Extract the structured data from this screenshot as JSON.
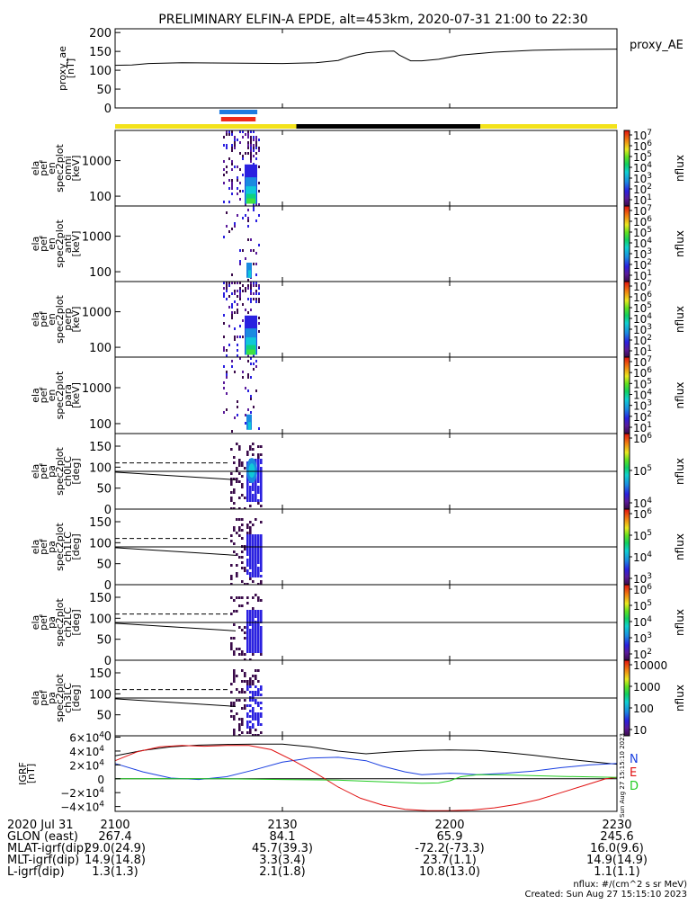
{
  "title": "PRELIMINARY ELFIN-A EPDE, alt=453km, 2020-07-31 21:00 to 22:30",
  "time_axis": {
    "start_min": 0,
    "end_min": 90,
    "ticks_min": [
      0,
      30,
      60,
      90
    ]
  },
  "colors": {
    "blue_bar": "#1e7be0",
    "red_bar": "#ee2a1a",
    "yellow_bar": "#f3e21b",
    "black_bar": "#000000",
    "n_color": "#1a3fe0",
    "e_color": "#e01010",
    "d_color": "#22cc22",
    "total_color": "#000000"
  },
  "bars": {
    "blue": {
      "start_min": 18.7,
      "end_min": 25.5
    },
    "red": {
      "start_min": 19.0,
      "end_min": 25.2
    },
    "status": [
      {
        "start_min": 0,
        "end_min": 32.5,
        "color": "#f3e21b"
      },
      {
        "start_min": 32.5,
        "end_min": 65.5,
        "color": "#000000"
      },
      {
        "start_min": 65.5,
        "end_min": 90,
        "color": "#f3e21b"
      }
    ]
  },
  "panels": {
    "proxy_ae": {
      "ylabel": [
        "proxy_ae",
        "[nT]"
      ],
      "right_label": "proxy_AE",
      "ylim": [
        0,
        210
      ],
      "yticks": [
        "0",
        "50",
        "100",
        "150",
        "200"
      ],
      "ytick_vals": [
        0,
        50,
        100,
        150,
        200
      ],
      "x_min": [
        0,
        3,
        6,
        12,
        20,
        30,
        36,
        40,
        42,
        45,
        48,
        50,
        51,
        53,
        55,
        58,
        62,
        68,
        75,
        82,
        90
      ],
      "y": [
        113,
        114,
        118,
        120,
        119,
        118,
        120,
        126,
        136,
        146,
        150,
        151,
        140,
        125,
        125,
        129,
        140,
        148,
        153,
        155,
        156
      ]
    },
    "en_omni": {
      "ylabel": [
        "ela",
        "pef",
        "en",
        "spec2plot",
        "omni",
        "[keV]"
      ],
      "yticks": [
        "100",
        "1000"
      ],
      "cb_ticks": [
        "10",
        "10",
        "10",
        "10",
        "10",
        "10",
        "10"
      ],
      "cb_exps": [
        "7",
        "6",
        "5",
        "4",
        "3",
        "2",
        "1"
      ]
    },
    "en_anti": {
      "ylabel": [
        "ela",
        "pef",
        "en",
        "spec2plot",
        "anti",
        "[keV]"
      ],
      "yticks": [
        "100",
        "1000"
      ],
      "cb_ticks": [
        "10",
        "10",
        "10",
        "10",
        "10",
        "10",
        "10"
      ],
      "cb_exps": [
        "7",
        "6",
        "5",
        "4",
        "3",
        "2",
        "1"
      ]
    },
    "en_perp": {
      "ylabel": [
        "ela",
        "pef",
        "en",
        "spec2plot",
        "perp",
        "[keV]"
      ],
      "yticks": [
        "100",
        "1000"
      ],
      "cb_ticks": [
        "10",
        "10",
        "10",
        "10",
        "10",
        "10",
        "10"
      ],
      "cb_exps": [
        "7",
        "6",
        "5",
        "4",
        "3",
        "2",
        "1"
      ]
    },
    "en_para": {
      "ylabel": [
        "ela",
        "pef",
        "en",
        "spec2plot",
        "para",
        "[keV]"
      ],
      "yticks": [
        "100",
        "1000"
      ],
      "cb_ticks": [
        "10",
        "10",
        "10",
        "10",
        "10",
        "10",
        "10"
      ],
      "cb_exps": [
        "7",
        "6",
        "5",
        "4",
        "3",
        "2",
        "1"
      ]
    },
    "pa_ch0": {
      "ylabel": [
        "ela",
        "pef",
        "pa",
        "spec2plot",
        "ch0LC",
        "[deg]"
      ],
      "yticks": [
        "0",
        "50",
        "100",
        "150"
      ],
      "cb_ticks": [
        "10",
        "10",
        "10"
      ],
      "cb_exps": [
        "6",
        "5",
        "4"
      ]
    },
    "pa_ch1": {
      "ylabel": [
        "ela",
        "pef",
        "pa",
        "spec2plot",
        "ch1LC",
        "[deg]"
      ],
      "yticks": [
        "0",
        "50",
        "100",
        "150"
      ],
      "cb_ticks": [
        "10",
        "10",
        "10",
        "10"
      ],
      "cb_exps": [
        "6",
        "5",
        "4",
        "3"
      ]
    },
    "pa_ch2": {
      "ylabel": [
        "ela",
        "pef",
        "pa",
        "spec2plot",
        "ch2LC",
        "[deg]"
      ],
      "yticks": [
        "0",
        "50",
        "100",
        "150"
      ],
      "cb_ticks": [
        "10",
        "10",
        "10",
        "10",
        "10"
      ],
      "cb_exps": [
        "6",
        "5",
        "4",
        "3",
        "2"
      ]
    },
    "pa_ch3": {
      "ylabel": [
        "ela",
        "pef",
        "pa",
        "spec2plot",
        "ch3LC",
        "[deg]"
      ],
      "yticks": [
        "0",
        "50",
        "100",
        "150"
      ],
      "cb_ticks": [
        "10000",
        "1000",
        "100",
        "10"
      ],
      "cb_exps": []
    },
    "igrf": {
      "ylabel": [
        "IGRF",
        "[nT]"
      ],
      "ytick_mant": [
        "−4×10",
        "−2×10",
        "0",
        "2×10",
        "4×10",
        "6×10"
      ],
      "ytick_exp": [
        "4",
        "4",
        "",
        "4",
        "4",
        "4"
      ],
      "ytick_vals": [
        -40000,
        -20000,
        0,
        20000,
        40000,
        60000
      ],
      "ylim": [
        -47000,
        62000
      ],
      "legend": [
        "N",
        "E",
        "D"
      ],
      "stamp": "Sun Aug 27 15:15:10 2023",
      "total": {
        "x": [
          0,
          5,
          10,
          15,
          20,
          25,
          30,
          35,
          40,
          45,
          50,
          55,
          60,
          65,
          70,
          75,
          80,
          85,
          90
        ],
        "y": [
          33000,
          41000,
          46000,
          48500,
          49500,
          50000,
          50000,
          46000,
          40000,
          36000,
          39000,
          41000,
          41500,
          41000,
          38000,
          34000,
          29000,
          25000,
          21000
        ]
      },
      "n": {
        "x": [
          0,
          5,
          10,
          15,
          20,
          25,
          30,
          35,
          40,
          45,
          48,
          52,
          55,
          60,
          62,
          65,
          70,
          75,
          80,
          85,
          90
        ],
        "y": [
          22000,
          10000,
          1000,
          -1000,
          3000,
          13000,
          24000,
          30000,
          31000,
          26000,
          18000,
          10000,
          6000,
          8000,
          7500,
          6000,
          8000,
          11000,
          16000,
          20000,
          22000
        ]
      },
      "e": {
        "x": [
          0,
          4,
          8,
          12,
          16,
          20,
          24,
          28,
          32,
          36,
          40,
          44,
          48,
          52,
          56,
          60,
          64,
          68,
          72,
          76,
          80,
          84,
          88,
          90
        ],
        "y": [
          26000,
          39000,
          46000,
          48000,
          47000,
          48000,
          48000,
          42000,
          26000,
          8000,
          -12000,
          -28000,
          -38000,
          -44000,
          -46000,
          -46000,
          -45000,
          -42000,
          -37000,
          -30000,
          -20000,
          -10000,
          0,
          2000
        ]
      },
      "d": {
        "x": [
          0,
          10,
          20,
          30,
          40,
          50,
          55,
          58,
          60,
          62,
          65,
          70,
          80,
          90
        ],
        "y": [
          0,
          0,
          0,
          -1000,
          -2000,
          -5000,
          -6500,
          -6000,
          -3000,
          3000,
          6000,
          5500,
          3500,
          2000
        ]
      }
    }
  },
  "footer": {
    "labels": [
      "2020 Jul 31",
      "GLON (east)",
      "MLAT-igrf(dip)",
      "MLT-igrf(dip)",
      "L-igrf(dip)"
    ],
    "columns": [
      {
        "time": "2100",
        "vals": [
          "267.4",
          "29.0(24.9)",
          "14.9(14.8)",
          "1.3(1.3)"
        ]
      },
      {
        "time": "2130",
        "vals": [
          "84.1",
          "45.7(39.3)",
          "3.3(3.4)",
          "2.1(1.8)"
        ]
      },
      {
        "time": "2200",
        "vals": [
          "65.9",
          "-72.2(-73.3)",
          "23.7(1.1)",
          "10.8(13.0)"
        ]
      },
      {
        "time": "2230",
        "vals": [
          "245.6",
          "16.0(9.6)",
          "14.9(14.9)",
          "1.1(1.1)"
        ]
      }
    ],
    "units": "nflux: #/(cm^2 s sr MeV)",
    "created": "Created: Sun Aug 27 15:15:10 2023"
  },
  "cb_label": "nflux"
}
